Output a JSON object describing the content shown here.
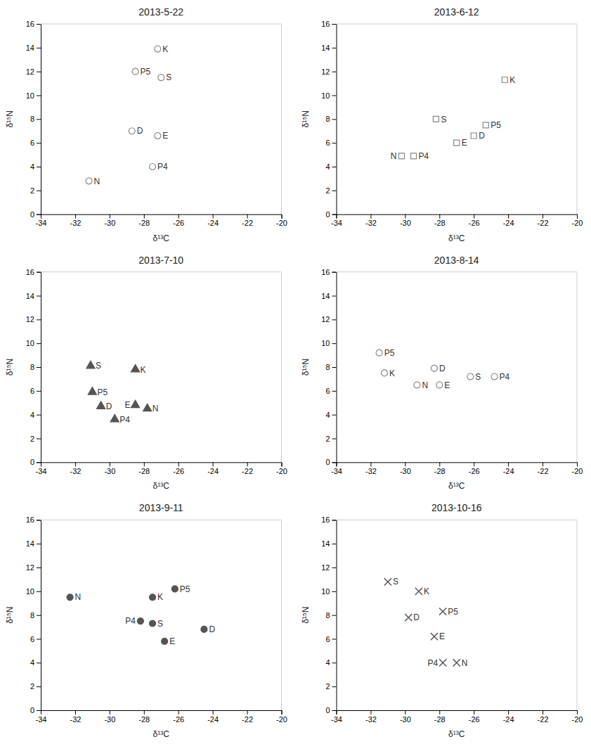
{
  "chart_data": [
    {
      "type": "scatter",
      "title": "2013-5-22",
      "xlabel": "δ¹³C",
      "ylabel": "δ¹⁵N",
      "x": [
        -27.2,
        -28.5,
        -27.0,
        -28.7,
        -27.2,
        -27.5,
        -31.2
      ],
      "values": [
        13.9,
        12.0,
        11.5,
        7.0,
        6.6,
        4.0,
        2.8
      ],
      "labels": [
        "K",
        "P5",
        "S",
        "D",
        "E",
        "P4",
        "N"
      ],
      "marker": "open-circle",
      "color": "#888888",
      "xlim": [
        -34,
        -20
      ],
      "ylim": [
        0,
        16
      ],
      "xticks": [
        -34,
        -32,
        -30,
        -28,
        -26,
        -24,
        -22,
        -20
      ],
      "yticks": [
        0,
        2,
        4,
        6,
        8,
        10,
        12,
        14,
        16
      ],
      "grid": false
    },
    {
      "type": "scatter",
      "title": "2013-6-12",
      "xlabel": "δ¹³C",
      "ylabel": "δ¹⁵N",
      "x": [
        -24.2,
        -28.2,
        -25.3,
        -26.0,
        -27.0,
        -30.2,
        -29.5
      ],
      "values": [
        11.3,
        8.0,
        7.5,
        6.6,
        6.0,
        4.9,
        4.9
      ],
      "labels": [
        "K",
        "S",
        "P5",
        "D",
        "E",
        "N",
        "P4"
      ],
      "marker": "open-square",
      "color": "#888888",
      "xlim": [
        -34,
        -20
      ],
      "ylim": [
        0,
        16
      ],
      "xticks": [
        -34,
        -32,
        -30,
        -28,
        -26,
        -24,
        -22,
        -20
      ],
      "yticks": [
        0,
        2,
        4,
        6,
        8,
        10,
        12,
        14,
        16
      ],
      "grid": false
    },
    {
      "type": "scatter",
      "title": "2013-7-10",
      "xlabel": "δ¹³C",
      "ylabel": "δ¹⁵N",
      "x": [
        -31.1,
        -28.5,
        -31.0,
        -30.5,
        -28.5,
        -27.8,
        -29.7
      ],
      "values": [
        8.1,
        7.8,
        5.9,
        4.7,
        4.8,
        4.5,
        3.6
      ],
      "labels": [
        "S",
        "K",
        "P5",
        "D",
        "E",
        "N",
        "P4"
      ],
      "marker": "filled-triangle",
      "color": "#555555",
      "xlim": [
        -34,
        -20
      ],
      "ylim": [
        0,
        16
      ],
      "xticks": [
        -34,
        -32,
        -30,
        -28,
        -26,
        -24,
        -22,
        -20
      ],
      "yticks": [
        0,
        2,
        4,
        6,
        8,
        10,
        12,
        14,
        16
      ],
      "grid": false
    },
    {
      "type": "scatter",
      "title": "2013-8-14",
      "xlabel": "δ¹³C",
      "ylabel": "δ¹⁵N",
      "x": [
        -31.5,
        -31.2,
        -28.3,
        -29.3,
        -28.0,
        -26.2,
        -24.8
      ],
      "values": [
        9.2,
        7.5,
        7.9,
        6.5,
        6.5,
        7.2,
        7.2
      ],
      "labels": [
        "P5",
        "K",
        "D",
        "N",
        "E",
        "S",
        "P4"
      ],
      "marker": "open-circle",
      "color": "#888888",
      "xlim": [
        -34,
        -20
      ],
      "ylim": [
        0,
        16
      ],
      "xticks": [
        -34,
        -32,
        -30,
        -28,
        -26,
        -24,
        -22,
        -20
      ],
      "yticks": [
        0,
        2,
        4,
        6,
        8,
        10,
        12,
        14,
        16
      ],
      "grid": false
    },
    {
      "type": "scatter",
      "title": "2013-9-11",
      "xlabel": "δ¹³C",
      "ylabel": "δ¹⁵N",
      "x": [
        -32.3,
        -27.5,
        -26.2,
        -28.2,
        -27.5,
        -26.8,
        -24.5
      ],
      "values": [
        9.5,
        9.5,
        10.2,
        7.5,
        7.3,
        5.8,
        6.8
      ],
      "labels": [
        "N",
        "K",
        "P5",
        "P4",
        "S",
        "E",
        "D"
      ],
      "marker": "filled-circle",
      "color": "#555555",
      "xlim": [
        -34,
        -20
      ],
      "ylim": [
        0,
        16
      ],
      "xticks": [
        -34,
        -32,
        -30,
        -28,
        -26,
        -24,
        -22,
        -20
      ],
      "yticks": [
        0,
        2,
        4,
        6,
        8,
        10,
        12,
        14,
        16
      ],
      "grid": false
    },
    {
      "type": "scatter",
      "title": "2013-10-16",
      "xlabel": "δ¹³C",
      "ylabel": "δ¹⁵N",
      "x": [
        -31.0,
        -29.2,
        -27.8,
        -29.8,
        -28.3,
        -27.8,
        -27.0
      ],
      "values": [
        10.8,
        10.0,
        8.3,
        7.8,
        6.2,
        4.0,
        4.0
      ],
      "labels": [
        "S",
        "K",
        "P5",
        "D",
        "E",
        "P4",
        "N"
      ],
      "marker": "x",
      "color": "#555555",
      "xlim": [
        -34,
        -20
      ],
      "ylim": [
        0,
        16
      ],
      "xticks": [
        -34,
        -32,
        -30,
        -28,
        -26,
        -24,
        -22,
        -20
      ],
      "yticks": [
        0,
        2,
        4,
        6,
        8,
        10,
        12,
        14,
        16
      ],
      "grid": false
    }
  ]
}
